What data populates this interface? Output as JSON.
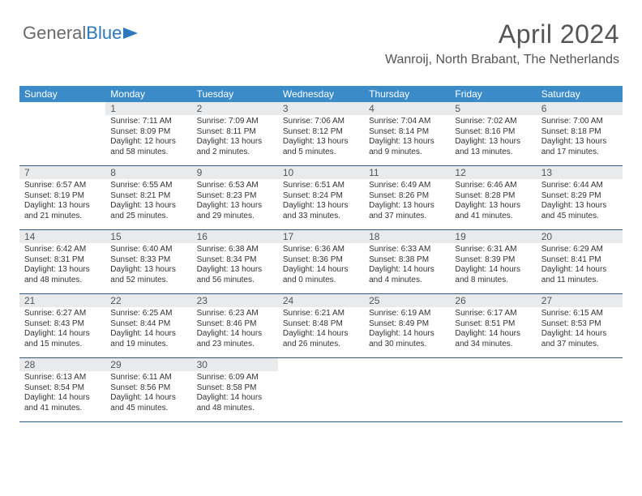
{
  "brand": {
    "part1": "General",
    "part2": "Blue"
  },
  "title": "April 2024",
  "location": "Wanroij, North Brabant, The Netherlands",
  "dow_header_bg": "#3b8bc9",
  "dow_text_color": "#ffffff",
  "daynum_bg": "#e9eaec",
  "week_border_color": "#2d5a8a",
  "dow": [
    "Sunday",
    "Monday",
    "Tuesday",
    "Wednesday",
    "Thursday",
    "Friday",
    "Saturday"
  ],
  "weeks": [
    [
      {
        "empty": true
      },
      {
        "n": "1",
        "sr": "7:11 AM",
        "ss": "8:09 PM",
        "dl": "12 hours and 58 minutes."
      },
      {
        "n": "2",
        "sr": "7:09 AM",
        "ss": "8:11 PM",
        "dl": "13 hours and 2 minutes."
      },
      {
        "n": "3",
        "sr": "7:06 AM",
        "ss": "8:12 PM",
        "dl": "13 hours and 5 minutes."
      },
      {
        "n": "4",
        "sr": "7:04 AM",
        "ss": "8:14 PM",
        "dl": "13 hours and 9 minutes."
      },
      {
        "n": "5",
        "sr": "7:02 AM",
        "ss": "8:16 PM",
        "dl": "13 hours and 13 minutes."
      },
      {
        "n": "6",
        "sr": "7:00 AM",
        "ss": "8:18 PM",
        "dl": "13 hours and 17 minutes."
      }
    ],
    [
      {
        "n": "7",
        "sr": "6:57 AM",
        "ss": "8:19 PM",
        "dl": "13 hours and 21 minutes."
      },
      {
        "n": "8",
        "sr": "6:55 AM",
        "ss": "8:21 PM",
        "dl": "13 hours and 25 minutes."
      },
      {
        "n": "9",
        "sr": "6:53 AM",
        "ss": "8:23 PM",
        "dl": "13 hours and 29 minutes."
      },
      {
        "n": "10",
        "sr": "6:51 AM",
        "ss": "8:24 PM",
        "dl": "13 hours and 33 minutes."
      },
      {
        "n": "11",
        "sr": "6:49 AM",
        "ss": "8:26 PM",
        "dl": "13 hours and 37 minutes."
      },
      {
        "n": "12",
        "sr": "6:46 AM",
        "ss": "8:28 PM",
        "dl": "13 hours and 41 minutes."
      },
      {
        "n": "13",
        "sr": "6:44 AM",
        "ss": "8:29 PM",
        "dl": "13 hours and 45 minutes."
      }
    ],
    [
      {
        "n": "14",
        "sr": "6:42 AM",
        "ss": "8:31 PM",
        "dl": "13 hours and 48 minutes."
      },
      {
        "n": "15",
        "sr": "6:40 AM",
        "ss": "8:33 PM",
        "dl": "13 hours and 52 minutes."
      },
      {
        "n": "16",
        "sr": "6:38 AM",
        "ss": "8:34 PM",
        "dl": "13 hours and 56 minutes."
      },
      {
        "n": "17",
        "sr": "6:36 AM",
        "ss": "8:36 PM",
        "dl": "14 hours and 0 minutes."
      },
      {
        "n": "18",
        "sr": "6:33 AM",
        "ss": "8:38 PM",
        "dl": "14 hours and 4 minutes."
      },
      {
        "n": "19",
        "sr": "6:31 AM",
        "ss": "8:39 PM",
        "dl": "14 hours and 8 minutes."
      },
      {
        "n": "20",
        "sr": "6:29 AM",
        "ss": "8:41 PM",
        "dl": "14 hours and 11 minutes."
      }
    ],
    [
      {
        "n": "21",
        "sr": "6:27 AM",
        "ss": "8:43 PM",
        "dl": "14 hours and 15 minutes."
      },
      {
        "n": "22",
        "sr": "6:25 AM",
        "ss": "8:44 PM",
        "dl": "14 hours and 19 minutes."
      },
      {
        "n": "23",
        "sr": "6:23 AM",
        "ss": "8:46 PM",
        "dl": "14 hours and 23 minutes."
      },
      {
        "n": "24",
        "sr": "6:21 AM",
        "ss": "8:48 PM",
        "dl": "14 hours and 26 minutes."
      },
      {
        "n": "25",
        "sr": "6:19 AM",
        "ss": "8:49 PM",
        "dl": "14 hours and 30 minutes."
      },
      {
        "n": "26",
        "sr": "6:17 AM",
        "ss": "8:51 PM",
        "dl": "14 hours and 34 minutes."
      },
      {
        "n": "27",
        "sr": "6:15 AM",
        "ss": "8:53 PM",
        "dl": "14 hours and 37 minutes."
      }
    ],
    [
      {
        "n": "28",
        "sr": "6:13 AM",
        "ss": "8:54 PM",
        "dl": "14 hours and 41 minutes."
      },
      {
        "n": "29",
        "sr": "6:11 AM",
        "ss": "8:56 PM",
        "dl": "14 hours and 45 minutes."
      },
      {
        "n": "30",
        "sr": "6:09 AM",
        "ss": "8:58 PM",
        "dl": "14 hours and 48 minutes."
      },
      {
        "empty": true
      },
      {
        "empty": true
      },
      {
        "empty": true
      },
      {
        "empty": true
      }
    ]
  ],
  "labels": {
    "sunrise": "Sunrise:",
    "sunset": "Sunset:",
    "daylight": "Daylight:"
  }
}
